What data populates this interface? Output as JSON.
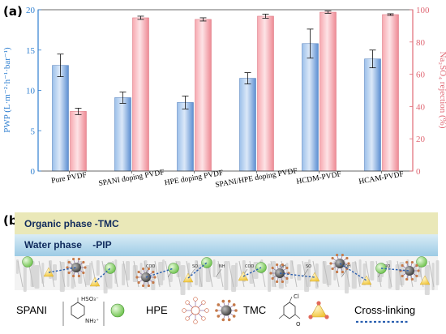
{
  "panel_a": {
    "label": "(a)"
  },
  "panel_b": {
    "label": "(b)"
  },
  "colors": {
    "pwp": "#5b8fd6",
    "pwp_light": "#bcd4f0",
    "rej": "#f08a94",
    "rej_light": "#fbd4d8",
    "left_axis": "#2f7fd0",
    "right_axis": "#e06a76"
  },
  "chart_data": {
    "type": "bar",
    "categories": [
      "Pure PVDF",
      "SPANI doping PVDF",
      "HPE doping PVDF",
      "SPANI/HPE doping PVDF",
      "HCDM-PVDF",
      "HCAM-PVDF"
    ],
    "ylabel_left": "PWP (L·m⁻²·h⁻¹·bar⁻¹)",
    "ylabel_right": "Na₂SO₄ rejection (%)",
    "ylim_left": [
      0,
      20
    ],
    "ylim_right": [
      0,
      100
    ],
    "yticks_left": [
      "0",
      "5",
      "10",
      "15",
      "20"
    ],
    "yticks_right": [
      "0",
      "20",
      "40",
      "60",
      "80",
      "100"
    ],
    "series": [
      {
        "axis": "left",
        "values": [
          13.1,
          9.1,
          8.5,
          11.5,
          15.8,
          13.9
        ],
        "errors": [
          1.4,
          0.7,
          0.8,
          0.7,
          1.8,
          1.1
        ]
      },
      {
        "axis": "right",
        "values": [
          37,
          95,
          94,
          96,
          98.5,
          97
        ],
        "errors": [
          2,
          1,
          1,
          1.3,
          0.7,
          0.5
        ]
      }
    ]
  },
  "schematic": {
    "organic_phase": "Organic phase -TMC",
    "water_phase": "Water phase    -PIP",
    "groups": [
      "COO",
      "OH",
      "SO",
      "NH",
      "COO",
      "OH",
      "SO",
      "OH",
      "COO"
    ],
    "legend": [
      {
        "label": "SPANI",
        "chem": [
          "HSO₃⁻",
          "NH₂⁺"
        ]
      },
      {
        "label": "HPE"
      },
      {
        "label": "TMC",
        "chem": [
          "Cl",
          "O"
        ]
      },
      {
        "label": "Cross-linking"
      }
    ]
  }
}
